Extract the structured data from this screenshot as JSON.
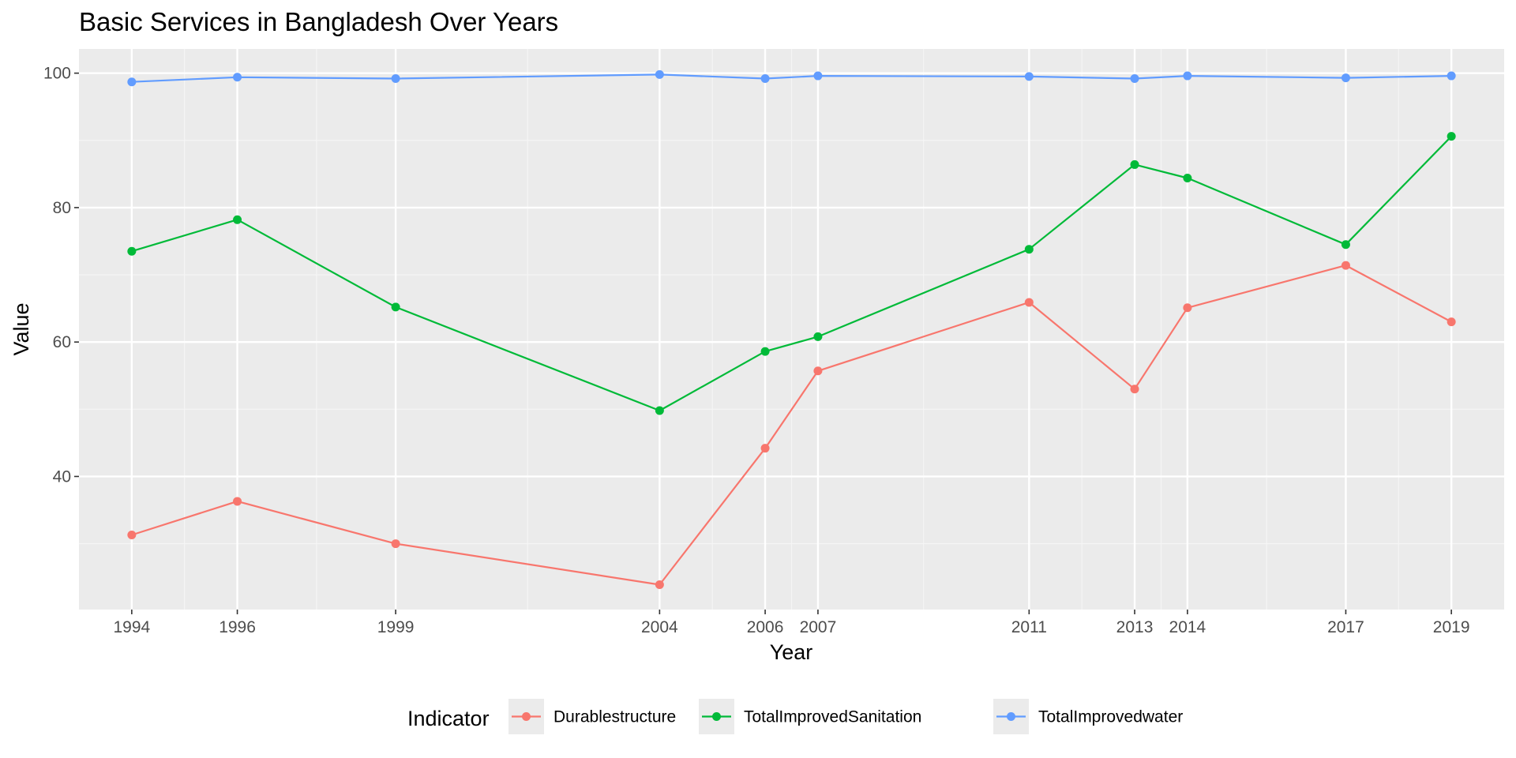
{
  "chart_data": {
    "type": "line",
    "title": "Basic Services in Bangladesh Over Years",
    "xlabel": "Year",
    "ylabel": "Value",
    "x": [
      1994,
      1996,
      1999,
      2004,
      2006,
      2007,
      2011,
      2013,
      2014,
      2017,
      2019
    ],
    "x_tick_labels": [
      "1994",
      "1996",
      "1999",
      "2004",
      "2006",
      "2007",
      "2011",
      "2013",
      "2014",
      "2017",
      "2019"
    ],
    "y_ticks": [
      40,
      60,
      80,
      100
    ],
    "y_tick_labels": [
      "40",
      "60",
      "80",
      "100"
    ],
    "xlim": [
      1993.0,
      2020.0
    ],
    "ylim": [
      20.2,
      103.6
    ],
    "grid": true,
    "legend": {
      "title": "Indicator",
      "position": "bottom"
    },
    "series": [
      {
        "name": "Durablestructure",
        "color": "#F8766D",
        "values": [
          31.3,
          36.3,
          30.0,
          23.9,
          44.2,
          55.7,
          65.9,
          53.0,
          65.1,
          71.4,
          63.0
        ]
      },
      {
        "name": "TotalImprovedSanitation",
        "color": "#00BA38",
        "values": [
          73.5,
          78.2,
          65.2,
          49.8,
          58.6,
          60.8,
          73.8,
          86.4,
          84.4,
          74.5,
          90.6
        ]
      },
      {
        "name": "TotalImprovedwater",
        "color": "#619CFF",
        "values": [
          98.7,
          99.4,
          99.2,
          99.8,
          99.2,
          99.6,
          99.5,
          99.2,
          99.6,
          99.3,
          99.6
        ]
      }
    ]
  }
}
